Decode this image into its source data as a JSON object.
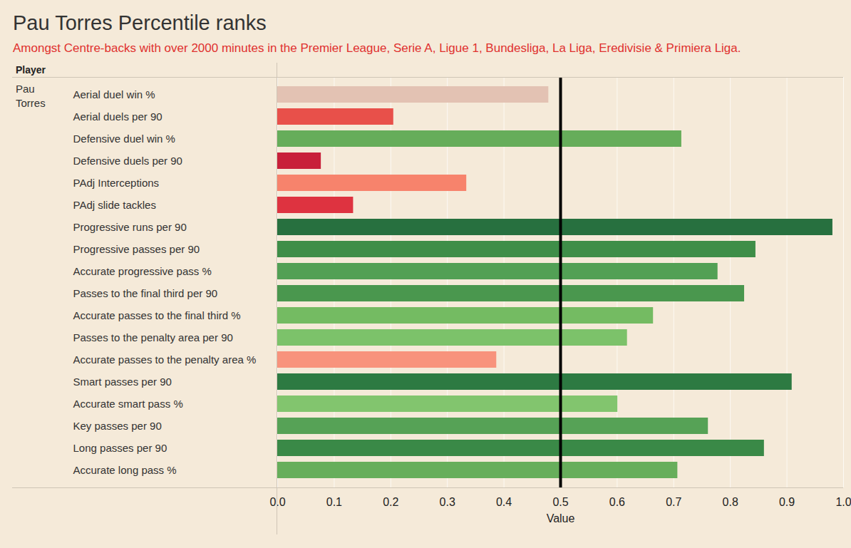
{
  "chart_data": {
    "type": "bar",
    "orientation": "horizontal",
    "title": "Pau Torres Percentile ranks",
    "subtitle": "Amongst Centre-backs with over 2000 minutes in the Premier League, Serie A, Ligue 1, Bundesliga, La Liga, Eredivisie & Primiera Liga.",
    "header": "Player",
    "group_label": "Pau Torres",
    "x_label": "Value",
    "categories": [
      "Aerial duel win %",
      "Aerial duels per 90",
      "Defensive duel win %",
      "Defensive duels per 90",
      "PAdj Interceptions",
      "PAdj slide tackles",
      "Progressive runs per 90",
      "Progressive passes per 90",
      "Accurate progressive pass %",
      "Passes to the final third per 90",
      "Accurate passes to the final third %",
      "Passes to the penalty area per 90",
      "Accurate passes to the penalty area %",
      "Smart passes per 90",
      "Accurate smart pass %",
      "Key passes per 90",
      "Long passes per 90",
      "Accurate long pass %"
    ],
    "values": [
      0.479,
      0.205,
      0.714,
      0.077,
      0.334,
      0.134,
      0.981,
      0.845,
      0.778,
      0.825,
      0.664,
      0.618,
      0.387,
      0.909,
      0.601,
      0.761,
      0.86,
      0.707
    ],
    "colors": [
      "#e3c2b3",
      "#e8504a",
      "#66ad5a",
      "#c8203a",
      "#f7836c",
      "#de3340",
      "#27703f",
      "#3e8e48",
      "#52a055",
      "#4a974e",
      "#74bb62",
      "#7cc26a",
      "#f8937c",
      "#2d7a42",
      "#82c56e",
      "#56a256",
      "#3a8947",
      "#67ae5b"
    ],
    "reference_line": 0.5,
    "xlim": [
      0,
      1
    ],
    "xticks": [
      {
        "value": 0,
        "label": "0.0"
      },
      0.1,
      0.2,
      0.3,
      0.4,
      0.5,
      0.6,
      0.7,
      0.8,
      0.9,
      {
        "value": 1,
        "label": "1.0"
      }
    ],
    "grid": true
  }
}
